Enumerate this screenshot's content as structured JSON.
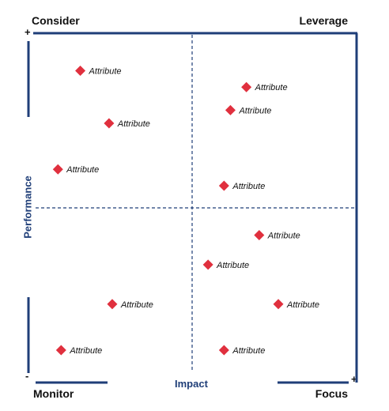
{
  "quadrant_labels": {
    "top_left": "Consider",
    "top_right": "Leverage",
    "bottom_left": "Monitor",
    "bottom_right": "Focus"
  },
  "signs": {
    "top": "+",
    "bottom_left": "-",
    "bottom_right": "+"
  },
  "colors": {
    "axis": "#1f3e78",
    "marker": "#e0303e"
  },
  "chart_data": {
    "type": "scatter",
    "title": "",
    "xlabel": "Impact",
    "ylabel": "Performance",
    "xlim": [
      0,
      10
    ],
    "ylim": [
      0,
      10
    ],
    "dividers": {
      "x": 5,
      "y": 5
    },
    "marker": "diamond",
    "points": [
      {
        "x": 1.4,
        "y": 9.1,
        "label": "Attribute"
      },
      {
        "x": 2.3,
        "y": 7.5,
        "label": "Attribute"
      },
      {
        "x": 0.7,
        "y": 6.1,
        "label": "Attribute"
      },
      {
        "x": 6.6,
        "y": 8.6,
        "label": "Attribute"
      },
      {
        "x": 6.1,
        "y": 7.9,
        "label": "Attribute"
      },
      {
        "x": 5.9,
        "y": 5.6,
        "label": "Attribute"
      },
      {
        "x": 7.0,
        "y": 4.1,
        "label": "Attribute"
      },
      {
        "x": 5.4,
        "y": 3.2,
        "label": "Attribute"
      },
      {
        "x": 2.4,
        "y": 2.0,
        "label": "Attribute"
      },
      {
        "x": 7.6,
        "y": 2.0,
        "label": "Attribute"
      },
      {
        "x": 0.8,
        "y": 0.6,
        "label": "Attribute"
      },
      {
        "x": 5.9,
        "y": 0.6,
        "label": "Attribute"
      }
    ]
  }
}
